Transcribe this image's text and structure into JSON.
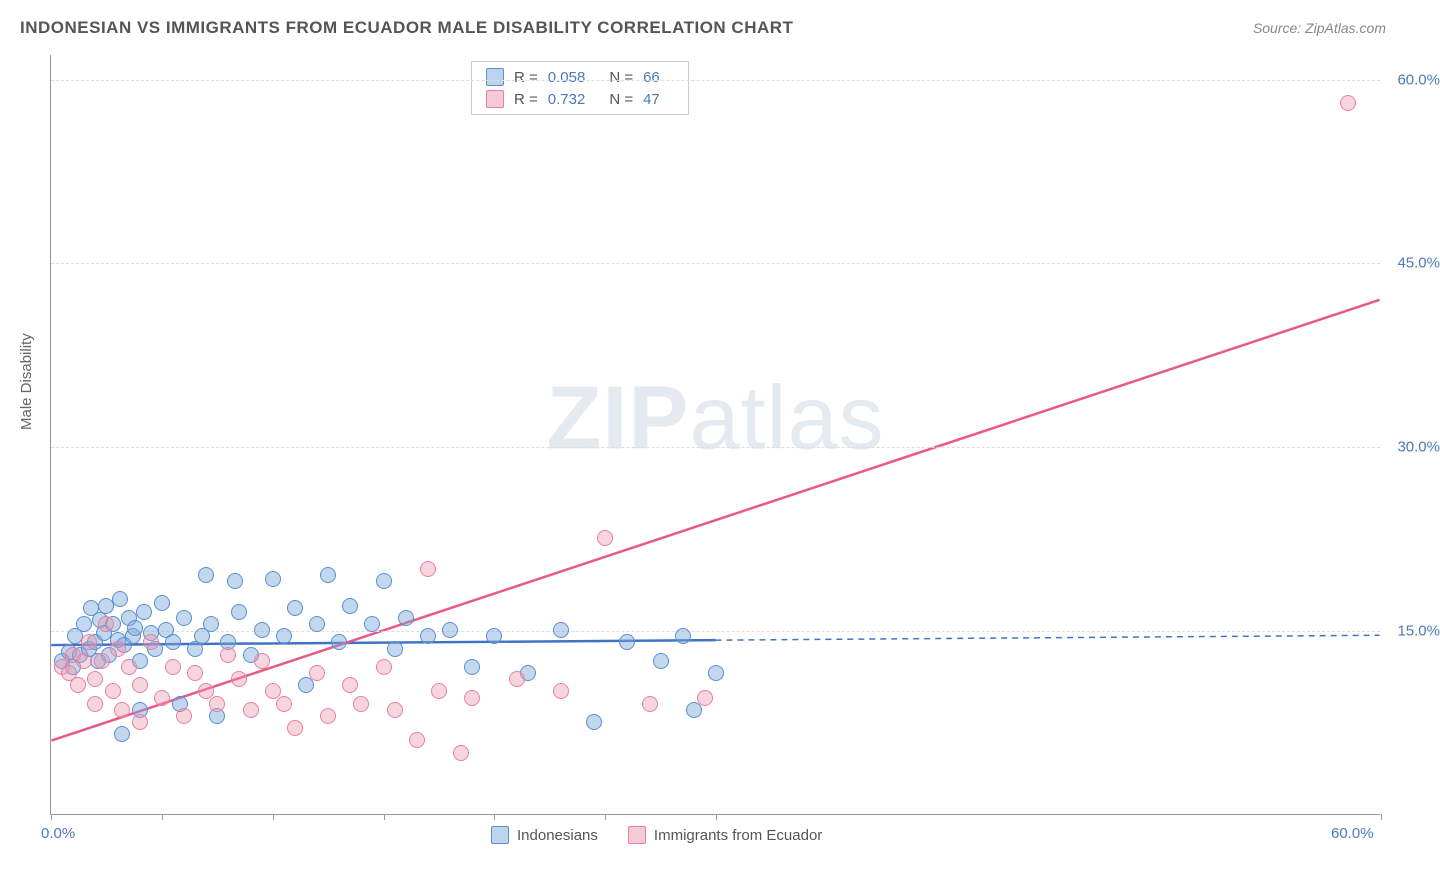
{
  "title": "INDONESIAN VS IMMIGRANTS FROM ECUADOR MALE DISABILITY CORRELATION CHART",
  "source": "Source: ZipAtlas.com",
  "watermark_a": "ZIP",
  "watermark_b": "atlas",
  "chart": {
    "type": "scatter",
    "y_axis_label": "Male Disability",
    "xlim": [
      0,
      60
    ],
    "ylim": [
      0,
      62
    ],
    "x_ticks": [
      0,
      5,
      10,
      15,
      20,
      25,
      30,
      60
    ],
    "x_tick_labels": {
      "0": "0.0%",
      "60": "60.0%"
    },
    "y_ticks": [
      15,
      30,
      45,
      60
    ],
    "y_tick_labels": {
      "15": "15.0%",
      "30": "30.0%",
      "45": "45.0%",
      "60": "60.0%"
    },
    "grid_color": "#dddddd",
    "axis_color": "#999999",
    "tick_label_color": "#4a7ab8",
    "background_color": "#ffffff",
    "series": [
      {
        "name": "Indonesians",
        "key": "blue",
        "marker_fill": "rgba(122,167,220,0.45)",
        "marker_stroke": "#5a8fd0",
        "line_color": "#3f74c5",
        "line_width": 2.5,
        "r": "0.058",
        "n": "66",
        "trend": {
          "x1": 0,
          "y1": 13.8,
          "x2": 30,
          "y2": 14.2,
          "x_solid_end": 30,
          "x_dash_end": 60,
          "y_dash_end": 14.6
        },
        "points": [
          [
            0.5,
            12.5
          ],
          [
            0.8,
            13.2
          ],
          [
            1.0,
            12.0
          ],
          [
            1.1,
            14.5
          ],
          [
            1.3,
            13.0
          ],
          [
            1.5,
            15.5
          ],
          [
            1.7,
            13.5
          ],
          [
            1.8,
            16.8
          ],
          [
            2.0,
            14.0
          ],
          [
            2.1,
            12.5
          ],
          [
            2.2,
            15.8
          ],
          [
            2.4,
            14.8
          ],
          [
            2.5,
            17.0
          ],
          [
            2.6,
            13.0
          ],
          [
            2.8,
            15.5
          ],
          [
            3.0,
            14.2
          ],
          [
            3.1,
            17.5
          ],
          [
            3.2,
            6.5
          ],
          [
            3.3,
            13.8
          ],
          [
            3.5,
            16.0
          ],
          [
            3.7,
            14.5
          ],
          [
            3.8,
            15.2
          ],
          [
            4.0,
            8.5
          ],
          [
            4.0,
            12.5
          ],
          [
            4.2,
            16.5
          ],
          [
            4.5,
            14.8
          ],
          [
            4.7,
            13.5
          ],
          [
            5.0,
            17.2
          ],
          [
            5.2,
            15.0
          ],
          [
            5.5,
            14.0
          ],
          [
            5.8,
            9.0
          ],
          [
            6.0,
            16.0
          ],
          [
            6.5,
            13.5
          ],
          [
            6.8,
            14.5
          ],
          [
            7.0,
            19.5
          ],
          [
            7.2,
            15.5
          ],
          [
            7.5,
            8.0
          ],
          [
            8.0,
            14.0
          ],
          [
            8.3,
            19.0
          ],
          [
            8.5,
            16.5
          ],
          [
            9.0,
            13.0
          ],
          [
            9.5,
            15.0
          ],
          [
            10.0,
            19.2
          ],
          [
            10.5,
            14.5
          ],
          [
            11.0,
            16.8
          ],
          [
            11.5,
            10.5
          ],
          [
            12.0,
            15.5
          ],
          [
            12.5,
            19.5
          ],
          [
            13.0,
            14.0
          ],
          [
            13.5,
            17.0
          ],
          [
            14.5,
            15.5
          ],
          [
            15.0,
            19.0
          ],
          [
            15.5,
            13.5
          ],
          [
            16.0,
            16.0
          ],
          [
            17.0,
            14.5
          ],
          [
            18.0,
            15.0
          ],
          [
            19.0,
            12.0
          ],
          [
            20.0,
            14.5
          ],
          [
            21.5,
            11.5
          ],
          [
            23.0,
            15.0
          ],
          [
            24.5,
            7.5
          ],
          [
            26.0,
            14.0
          ],
          [
            27.5,
            12.5
          ],
          [
            28.5,
            14.5
          ],
          [
            29.0,
            8.5
          ],
          [
            30.0,
            11.5
          ]
        ]
      },
      {
        "name": "Immigrants from Ecuador",
        "key": "pink",
        "marker_fill": "rgba(235,150,175,0.4)",
        "marker_stroke": "#e8809e",
        "line_color": "#e85a85",
        "line_width": 2.5,
        "r": "0.732",
        "n": "47",
        "trend": {
          "x1": 0,
          "y1": 6.0,
          "x2": 60,
          "y2": 42.0
        },
        "points": [
          [
            0.5,
            12.0
          ],
          [
            0.8,
            11.5
          ],
          [
            1.0,
            13.0
          ],
          [
            1.2,
            10.5
          ],
          [
            1.5,
            12.5
          ],
          [
            1.7,
            14.0
          ],
          [
            2.0,
            11.0
          ],
          [
            2.0,
            9.0
          ],
          [
            2.3,
            12.5
          ],
          [
            2.5,
            15.5
          ],
          [
            2.8,
            10.0
          ],
          [
            3.0,
            13.5
          ],
          [
            3.2,
            8.5
          ],
          [
            3.5,
            12.0
          ],
          [
            4.0,
            10.5
          ],
          [
            4.0,
            7.5
          ],
          [
            4.5,
            14.0
          ],
          [
            5.0,
            9.5
          ],
          [
            5.5,
            12.0
          ],
          [
            6.0,
            8.0
          ],
          [
            6.5,
            11.5
          ],
          [
            7.0,
            10.0
          ],
          [
            7.5,
            9.0
          ],
          [
            8.0,
            13.0
          ],
          [
            8.5,
            11.0
          ],
          [
            9.0,
            8.5
          ],
          [
            9.5,
            12.5
          ],
          [
            10.0,
            10.0
          ],
          [
            10.5,
            9.0
          ],
          [
            11.0,
            7.0
          ],
          [
            12.0,
            11.5
          ],
          [
            12.5,
            8.0
          ],
          [
            13.5,
            10.5
          ],
          [
            14.0,
            9.0
          ],
          [
            15.0,
            12.0
          ],
          [
            15.5,
            8.5
          ],
          [
            16.5,
            6.0
          ],
          [
            17.0,
            20.0
          ],
          [
            17.5,
            10.0
          ],
          [
            18.5,
            5.0
          ],
          [
            19.0,
            9.5
          ],
          [
            21.0,
            11.0
          ],
          [
            23.0,
            10.0
          ],
          [
            25.0,
            22.5
          ],
          [
            27.0,
            9.0
          ],
          [
            29.5,
            9.5
          ],
          [
            58.5,
            58.0
          ]
        ]
      }
    ],
    "legend_top": {
      "r_label": "R =",
      "n_label": "N ="
    },
    "legend_bottom": [
      {
        "key": "blue",
        "label": "Indonesians"
      },
      {
        "key": "pink",
        "label": "Immigrants from Ecuador"
      }
    ]
  }
}
